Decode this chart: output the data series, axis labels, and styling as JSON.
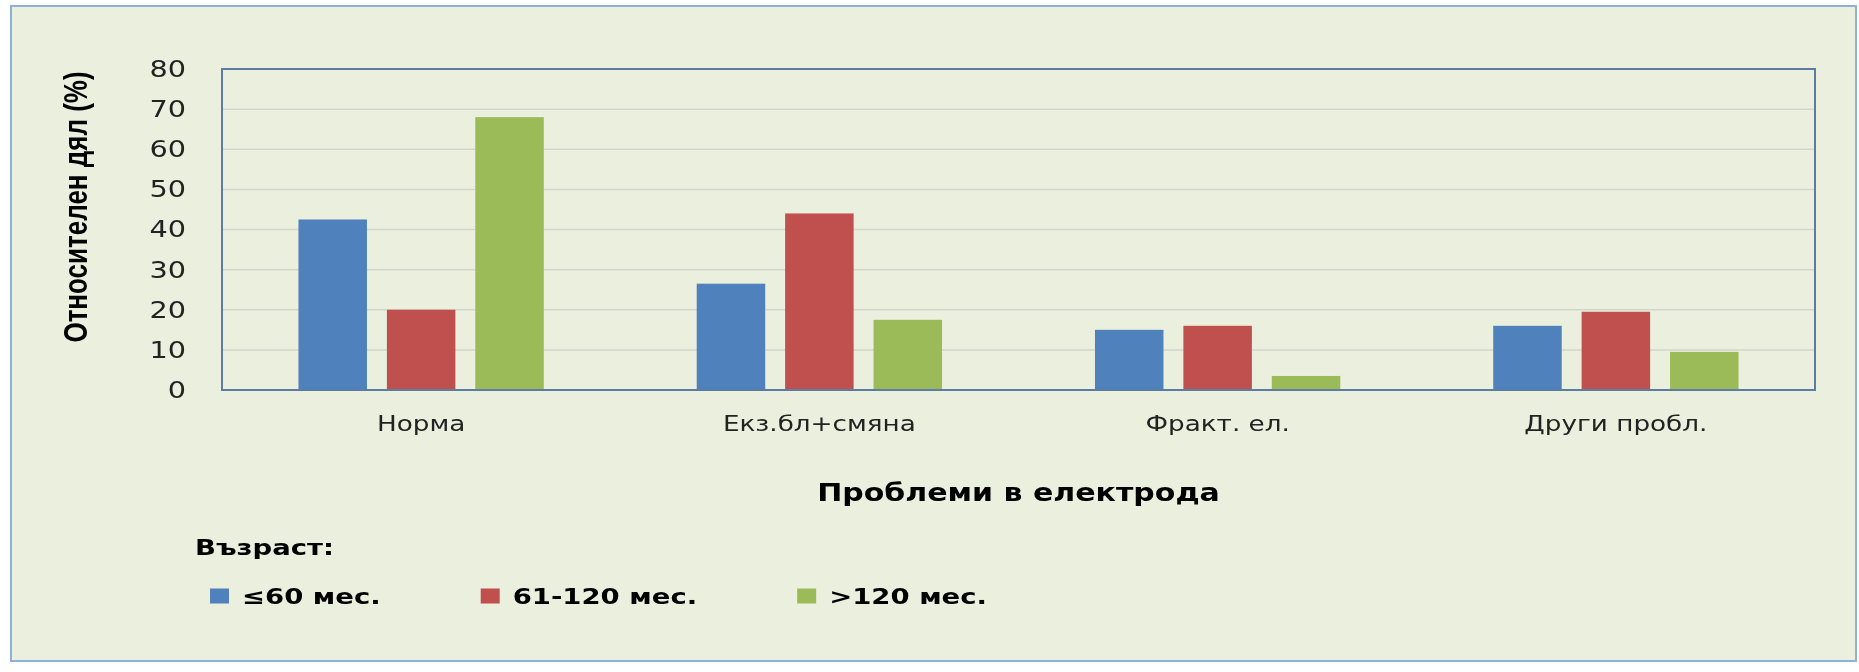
{
  "chart_data": {
    "type": "bar",
    "xlabel": "Проблеми в електрода",
    "ylabel": "Относителен дял (%)",
    "legend_title": "Възраст:",
    "categories": [
      "Норма",
      "Екз.бл+смяна",
      "Фракт. ел.",
      "Други пробл."
    ],
    "series": [
      {
        "name": "≤60 мес.",
        "color": "#4f81bd",
        "values": [
          42.5,
          26.5,
          15,
          16
        ]
      },
      {
        "name": "61-120 мес.",
        "color": "#c0504d",
        "values": [
          20,
          44,
          16,
          19.5
        ]
      },
      {
        "name": ">120 мес.",
        "color": "#9bbb59",
        "values": [
          68,
          17.5,
          3.5,
          9.5
        ]
      }
    ],
    "ylim": [
      0,
      80
    ],
    "yticks": [
      0,
      10,
      20,
      30,
      40,
      50,
      60,
      70,
      80
    ],
    "grid": "y",
    "legend": "bottom left"
  }
}
